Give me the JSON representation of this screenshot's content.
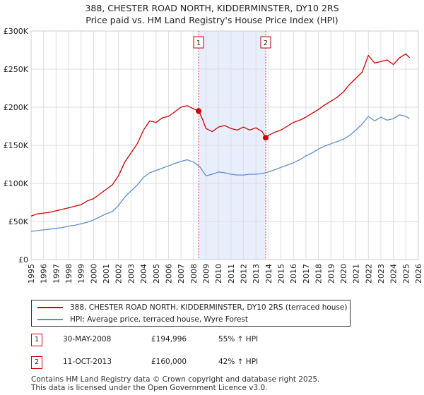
{
  "title_line1": "388, CHESTER ROAD NORTH, KIDDERMINSTER, DY10 2RS",
  "title_line2": "Price paid vs. HM Land Registry's House Price Index (HPI)",
  "colors": {
    "price_line": "#cc0000",
    "hpi_line": "#5b8ed1",
    "shade": "#e8eefb",
    "grid": "#dddddd",
    "marker_line": "#dd4444"
  },
  "chart_data": {
    "type": "line",
    "xlim": [
      1995,
      2026
    ],
    "ylim": [
      0,
      300000
    ],
    "y_ticks": [
      0,
      50000,
      100000,
      150000,
      200000,
      250000,
      300000
    ],
    "y_tick_labels": [
      "£0",
      "£50K",
      "£100K",
      "£150K",
      "£200K",
      "£250K",
      "£300K"
    ],
    "x_ticks": [
      1995,
      1996,
      1997,
      1998,
      1999,
      2000,
      2001,
      2002,
      2003,
      2004,
      2005,
      2006,
      2007,
      2008,
      2009,
      2010,
      2011,
      2012,
      2013,
      2014,
      2015,
      2016,
      2017,
      2018,
      2019,
      2020,
      2021,
      2022,
      2023,
      2024,
      2025,
      2026
    ],
    "x_tick_labels": [
      "1995",
      "1996",
      "1997",
      "1998",
      "1999",
      "2000",
      "2001",
      "2002",
      "2003",
      "2004",
      "2005",
      "2006",
      "2007",
      "2008",
      "2009",
      "2010",
      "2011",
      "2012",
      "2013",
      "2014",
      "2015",
      "2016",
      "2017",
      "2018",
      "2019",
      "2020",
      "2021",
      "2022",
      "2023",
      "2024",
      "2025",
      "2026"
    ],
    "shaded_region": [
      2008.41,
      2013.78
    ],
    "series": [
      {
        "name": "388, CHESTER ROAD NORTH, KIDDERMINSTER, DY10 2RS (terraced house)",
        "x": [
          1995,
          1995.5,
          1996,
          1996.5,
          1997,
          1997.5,
          1998,
          1998.5,
          1999,
          1999.5,
          2000,
          2000.5,
          2001,
          2001.5,
          2002,
          2002.5,
          2003,
          2003.5,
          2004,
          2004.5,
          2005,
          2005.5,
          2006,
          2006.5,
          2007,
          2007.5,
          2008,
          2008.41,
          2008.7,
          2009,
          2009.5,
          2010,
          2010.5,
          2011,
          2011.5,
          2012,
          2012.5,
          2013,
          2013.5,
          2013.78,
          2014,
          2014.5,
          2015,
          2015.5,
          2016,
          2016.5,
          2017,
          2017.5,
          2018,
          2018.5,
          2019,
          2019.5,
          2020,
          2020.5,
          2021,
          2021.5,
          2022,
          2022.5,
          2023,
          2023.5,
          2024,
          2024.5,
          2025,
          2025.3
        ],
        "values": [
          57000,
          60000,
          61000,
          62000,
          64000,
          66000,
          68000,
          70000,
          72000,
          77000,
          80000,
          86000,
          92000,
          98000,
          110000,
          128000,
          140000,
          152000,
          170000,
          182000,
          180000,
          186000,
          188000,
          194000,
          200000,
          202000,
          198000,
          194996,
          185000,
          172000,
          168000,
          174000,
          176000,
          172000,
          170000,
          174000,
          170000,
          173000,
          168000,
          160000,
          163000,
          167000,
          170000,
          175000,
          180000,
          183000,
          187000,
          192000,
          197000,
          203000,
          208000,
          213000,
          220000,
          230000,
          238000,
          246000,
          268000,
          258000,
          260000,
          262000,
          256000,
          265000,
          270000,
          265000
        ]
      },
      {
        "name": "HPI: Average price, terraced house, Wyre Forest",
        "x": [
          1995,
          1995.5,
          1996,
          1996.5,
          1997,
          1997.5,
          1998,
          1998.5,
          1999,
          1999.5,
          2000,
          2000.5,
          2001,
          2001.5,
          2002,
          2002.5,
          2003,
          2003.5,
          2004,
          2004.5,
          2005,
          2005.5,
          2006,
          2006.5,
          2007,
          2007.5,
          2008,
          2008.5,
          2009,
          2009.5,
          2010,
          2010.5,
          2011,
          2011.5,
          2012,
          2012.5,
          2013,
          2013.5,
          2014,
          2014.5,
          2015,
          2015.5,
          2016,
          2016.5,
          2017,
          2017.5,
          2018,
          2018.5,
          2019,
          2019.5,
          2020,
          2020.5,
          2021,
          2021.5,
          2022,
          2022.5,
          2023,
          2023.5,
          2024,
          2024.5,
          2025,
          2025.3
        ],
        "values": [
          37000,
          38000,
          39000,
          40000,
          41000,
          42000,
          44000,
          45000,
          47000,
          49000,
          52000,
          56000,
          60000,
          63000,
          71000,
          82000,
          90000,
          98000,
          108000,
          114000,
          117000,
          120000,
          123000,
          126000,
          129000,
          131000,
          128000,
          122000,
          110000,
          112000,
          115000,
          114000,
          112000,
          111000,
          111000,
          112000,
          112000,
          113000,
          115000,
          118000,
          121000,
          124000,
          127000,
          131000,
          136000,
          140000,
          145000,
          149000,
          152000,
          155000,
          158000,
          163000,
          170000,
          178000,
          188000,
          182000,
          187000,
          183000,
          185000,
          190000,
          188000,
          185000
        ]
      }
    ],
    "sales": [
      {
        "label": "1",
        "x": 2008.41,
        "value": 194996
      },
      {
        "label": "2",
        "x": 2013.78,
        "value": 160000
      }
    ]
  },
  "legend": {
    "price_label": "388, CHESTER ROAD NORTH, KIDDERMINSTER, DY10 2RS (terraced house)",
    "hpi_label": "HPI: Average price, terraced house, Wyre Forest"
  },
  "sales_table": [
    {
      "num": "1",
      "date": "30-MAY-2008",
      "price": "£194,996",
      "hpi": "55% ↑ HPI"
    },
    {
      "num": "2",
      "date": "11-OCT-2013",
      "price": "£160,000",
      "hpi": "42% ↑ HPI"
    }
  ],
  "footer_line1": "Contains HM Land Registry data © Crown copyright and database right 2025.",
  "footer_line2": "This data is licensed under the Open Government Licence v3.0."
}
